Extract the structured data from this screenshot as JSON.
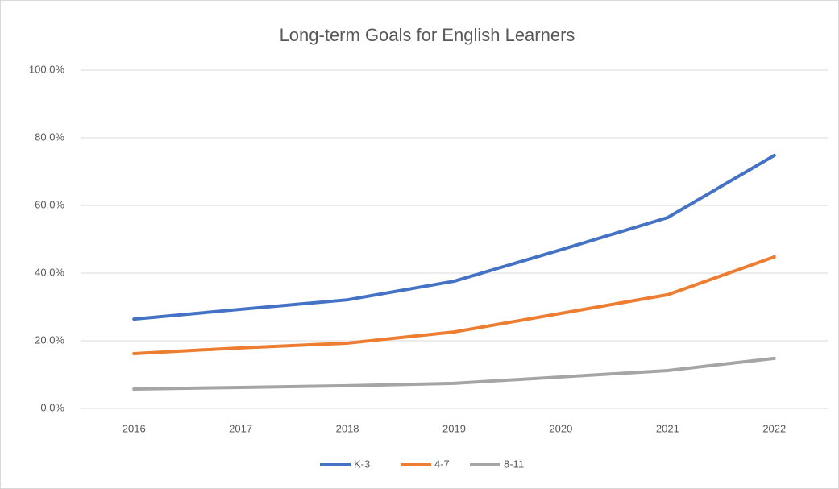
{
  "chart_data": {
    "type": "line",
    "title": "Long-term Goals for English Learners",
    "categories": [
      "2016",
      "2017",
      "2018",
      "2019",
      "2020",
      "2021",
      "2022"
    ],
    "series": [
      {
        "name": "K-3",
        "color": "#4472c4",
        "values": [
          26.4,
          29.3,
          32.1,
          37.6,
          46.9,
          56.4,
          74.8
        ]
      },
      {
        "name": "4-7",
        "color": "#ed7d31",
        "values": [
          16.2,
          17.9,
          19.3,
          22.6,
          28.1,
          33.6,
          44.8
        ]
      },
      {
        "name": "8-11",
        "color": "#a5a5a5",
        "values": [
          5.7,
          6.2,
          6.7,
          7.4,
          9.3,
          11.2,
          14.8
        ]
      }
    ],
    "ylim": [
      0,
      100
    ],
    "yticks": [
      {
        "value": 0,
        "label": "0.0%"
      },
      {
        "value": 20,
        "label": "20.0%"
      },
      {
        "value": 40,
        "label": "40.0%"
      },
      {
        "value": 60,
        "label": "60.0%"
      },
      {
        "value": 80,
        "label": "80.0%"
      },
      {
        "value": 100,
        "label": "100.0%"
      }
    ],
    "grid": true,
    "legend": "bottom"
  }
}
